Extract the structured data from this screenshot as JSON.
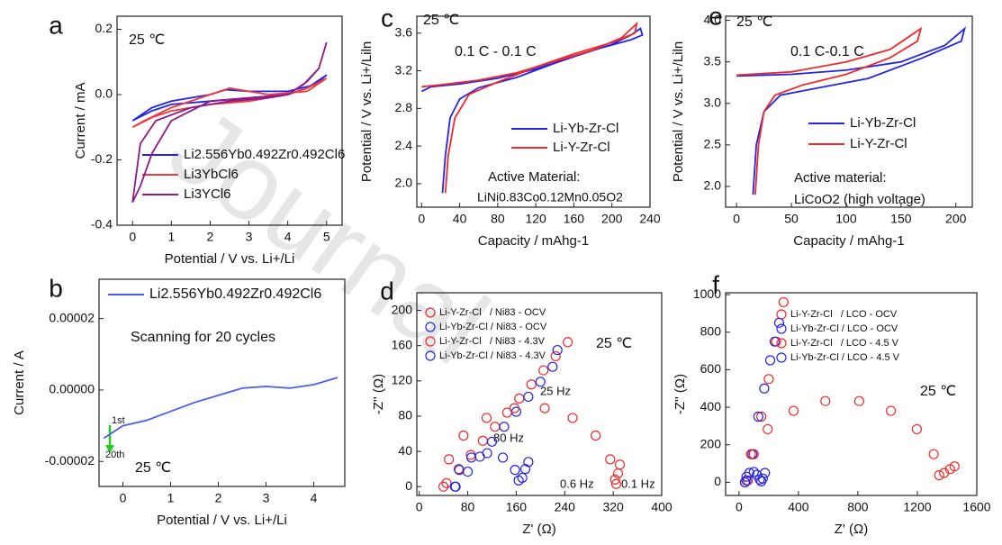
{
  "watermark": "Journal",
  "chart_data": [
    {
      "type": "line",
      "panel_label": "a",
      "xlabel": "Potential / V vs. Li+/Li",
      "ylabel": "Current / mA",
      "xlim": [
        -0.4,
        5.4
      ],
      "ylim": [
        -0.4,
        0.24
      ],
      "xticks": [
        0,
        1,
        2,
        3,
        4,
        5
      ],
      "yticks": [
        -0.4,
        -0.2,
        {
          "value": 0,
          "label": "0.0"
        },
        0.2
      ],
      "annotations": [
        "25 ℃"
      ],
      "series": [
        {
          "name": "Li2.556Yb0.492Zr0.492Cl6",
          "color": "#2424e8",
          "x": [
            0,
            0.5,
            1,
            2,
            3,
            4,
            4.5,
            5,
            4.7,
            4,
            3,
            2.4,
            2,
            1,
            0.5,
            0
          ],
          "values": [
            -0.08,
            -0.05,
            -0.03,
            -0.02,
            -0.01,
            0.0,
            0.02,
            0.06,
            0.03,
            0.01,
            0.01,
            0.015,
            0.0,
            -0.02,
            -0.04,
            -0.08
          ]
        },
        {
          "name": "Li3YbCl6",
          "color": "#ee3a3a",
          "x": [
            0,
            0.5,
            1,
            2,
            3,
            4,
            4.5,
            5,
            4.5,
            3.5,
            2.5,
            2,
            1,
            0.3,
            0
          ],
          "values": [
            -0.1,
            -0.07,
            -0.05,
            -0.03,
            -0.02,
            0.0,
            0.02,
            0.05,
            0.01,
            0.0,
            0.02,
            0.0,
            -0.04,
            -0.08,
            -0.1
          ]
        },
        {
          "name": "Li3YCl6",
          "color": "#8b1a8b",
          "x": [
            0,
            0.2,
            0.6,
            1.5,
            2.5,
            3.5,
            4,
            4.4,
            4.8,
            5,
            4.8,
            4.5,
            4,
            3,
            2,
            1,
            0.5,
            0.2,
            0
          ],
          "values": [
            -0.33,
            -0.15,
            -0.08,
            -0.04,
            -0.02,
            -0.01,
            0.0,
            0.03,
            0.08,
            0.16,
            0.08,
            0.04,
            0.0,
            -0.01,
            -0.02,
            -0.08,
            -0.18,
            -0.28,
            -0.33
          ]
        }
      ]
    },
    {
      "type": "line",
      "panel_label": "b",
      "xlabel": "Potential / V vs. Li+/Li",
      "ylabel": "Current / A",
      "xlim": [
        -0.5,
        4.65
      ],
      "ylim": [
        -2.7e-05,
        3.1e-05
      ],
      "xticks": [
        0,
        1,
        2,
        3,
        4
      ],
      "yticks": [
        {
          "value": -2e-05,
          "label": "-0.00002"
        },
        {
          "value": 0,
          "label": "0.00000"
        },
        {
          "value": 2e-05,
          "label": "0.00002"
        }
      ],
      "annotations": [
        "Scanning for 20 cycles",
        "1st",
        "20th",
        "25 ℃"
      ],
      "series": [
        {
          "name": "Li2.556Yb0.492Zr0.492Cl6",
          "color": "#4c5fe8",
          "x": [
            -0.4,
            0,
            0.5,
            1,
            1.5,
            2,
            2.5,
            3,
            3.5,
            4,
            4.5
          ],
          "values": [
            -1.35e-05,
            -1e-05,
            -8.5e-06,
            -6e-06,
            -3.5e-06,
            -1.5e-06,
            5e-07,
            1e-06,
            5e-07,
            1.5e-06,
            3.5e-06
          ]
        }
      ]
    },
    {
      "type": "line",
      "panel_label": "c",
      "xlabel": "Capacity / mAhg-1",
      "ylabel": "Potential / V vs. Li+/Liln",
      "xlim": [
        -5,
        240
      ],
      "ylim": [
        1.75,
        3.78
      ],
      "xticks": [
        0,
        40,
        80,
        120,
        160,
        200,
        240
      ],
      "yticks": [
        {
          "value": 2,
          "label": "2.0"
        },
        2.4,
        2.8,
        3.2,
        3.6
      ],
      "annotations": [
        "25 ℃",
        "0.1 C - 0.1 C",
        "Active Material:",
        "LiNi0.83Co0.12Mn0.05O2"
      ],
      "series": [
        {
          "name": "Li-Yb-Zr-Cl",
          "color": "#2424e8",
          "x": [
            0,
            10,
            40,
            80,
            120,
            160,
            200,
            220,
            230,
            232,
            220,
            180,
            140,
            100,
            60,
            40,
            30,
            25,
            22
          ],
          "values": [
            2.98,
            3.03,
            3.06,
            3.12,
            3.22,
            3.35,
            3.48,
            3.58,
            3.65,
            3.58,
            3.53,
            3.42,
            3.28,
            3.13,
            3.02,
            2.9,
            2.7,
            2.3,
            1.9
          ]
        },
        {
          "name": "Li-Y-Zr-Cl",
          "color": "#ee2a2a",
          "x": [
            0,
            20,
            60,
            100,
            140,
            180,
            210,
            226,
            224,
            200,
            160,
            120,
            80,
            50,
            35,
            28,
            25
          ],
          "values": [
            3.03,
            3.05,
            3.1,
            3.18,
            3.3,
            3.42,
            3.55,
            3.7,
            3.6,
            3.5,
            3.38,
            3.24,
            3.08,
            2.95,
            2.7,
            2.3,
            1.9
          ]
        }
      ]
    },
    {
      "type": "scatter",
      "panel_label": "d",
      "xlabel": "Z' (Ω)",
      "ylabel": "-Z'' (Ω)",
      "xlim": [
        -4,
        400
      ],
      "ylim": [
        -10,
        220
      ],
      "xticks": [
        0,
        80,
        160,
        240,
        320,
        400
      ],
      "yticks": [
        0,
        40,
        80,
        120,
        160,
        200
      ],
      "annotations": [
        "25 Hz",
        "80 Hz",
        "0.6 Hz",
        "0.1 Hz",
        "25 ℃"
      ],
      "series": [
        {
          "name": "Li-Y-Zr-Cl   / Ni83 - OCV",
          "color": "#ee2a2a",
          "x": [
            45,
            65,
            85,
            105,
            125,
            145,
            165,
            185,
            205,
            225,
            245
          ],
          "values": [
            4,
            20,
            36,
            52,
            68,
            84,
            100,
            116,
            132,
            148,
            164
          ]
        },
        {
          "name": "Li-Yb-Zr-Cl / Ni83 - OCV",
          "color": "#2424e8",
          "x": [
            60,
            80,
            100,
            120,
            140,
            160,
            180,
            200,
            220,
            228
          ],
          "values": [
            0,
            17,
            34,
            51,
            68,
            85,
            102,
            119,
            136,
            155
          ]
        },
        {
          "name": "Li-Y-Zr-Cl   / Ni83 - 4.3V",
          "color": "#ee2a2a",
          "x": [
            40,
            49,
            73,
            111,
            157,
            207,
            253,
            291,
            315,
            323,
            325,
            328,
            331
          ],
          "values": [
            0,
            31,
            58,
            78,
            89,
            89,
            78,
            58,
            31,
            8,
            3,
            15,
            25
          ]
        },
        {
          "name": "Li-Yb-Zr-Cl / Ni83 - 4.3V",
          "color": "#2424e8",
          "x": [
            59,
            66,
            86,
            112,
            138,
            158,
            164,
            170,
            175,
            180
          ],
          "values": [
            0,
            19,
            33,
            38,
            33,
            19,
            7,
            10,
            20,
            28
          ]
        }
      ]
    },
    {
      "type": "line",
      "panel_label": "e",
      "xlabel": "Capacity / mAhg-1",
      "ylabel": "Potential / V vs. Li+/Liln",
      "xlim": [
        -10,
        215
      ],
      "ylim": [
        1.75,
        4.05
      ],
      "xticks": [
        0,
        50,
        100,
        150,
        200
      ],
      "yticks": [
        {
          "value": 2,
          "label": "2.0"
        },
        2.5,
        {
          "value": 3,
          "label": "3.0"
        },
        3.5,
        {
          "value": 4,
          "label": "4.0"
        }
      ],
      "annotations": [
        "25 ℃",
        "0.1 C-0.1 C",
        "Active material:",
        "LiCoO2 (high voltage)"
      ],
      "series": [
        {
          "name": "Li-Yb-Zr-Cl",
          "color": "#2424e8",
          "x": [
            0,
            50,
            100,
            150,
            190,
            208,
            205,
            170,
            120,
            80,
            40,
            25,
            18,
            15
          ],
          "values": [
            3.33,
            3.35,
            3.4,
            3.5,
            3.7,
            3.9,
            3.75,
            3.55,
            3.3,
            3.2,
            3.1,
            2.9,
            2.5,
            1.9
          ]
        },
        {
          "name": "Li-Y-Zr-Cl",
          "color": "#ee2a2a",
          "x": [
            0,
            50,
            100,
            140,
            168,
            165,
            140,
            100,
            60,
            35,
            25,
            20,
            17
          ],
          "values": [
            3.34,
            3.38,
            3.5,
            3.65,
            3.9,
            3.75,
            3.55,
            3.35,
            3.22,
            3.1,
            2.9,
            2.5,
            1.9
          ]
        }
      ]
    },
    {
      "type": "scatter",
      "panel_label": "f",
      "xlabel": "Z' (Ω)",
      "ylabel": "-Z'' (Ω)",
      "xlim": [
        -90,
        1600
      ],
      "ylim": [
        -70,
        1010
      ],
      "xticks": [
        0,
        400,
        800,
        1200,
        1600
      ],
      "yticks": [
        0,
        200,
        400,
        600,
        800,
        1000
      ],
      "annotations": [
        "25 ℃"
      ],
      "series": [
        {
          "name": "Li-Y-Zr-Cl   / LCO - OCV",
          "color": "#ee2a2a",
          "x": [
            60,
            100,
            150,
            200,
            250,
            300
          ],
          "values": [
            10,
            150,
            350,
            550,
            750,
            960
          ]
        },
        {
          "name": "Li-Yb-Zr-Cl / LCO - OCV",
          "color": "#2424e8",
          "x": [
            50,
            90,
            130,
            170,
            210,
            240,
            270
          ],
          "values": [
            10,
            150,
            350,
            500,
            650,
            750,
            850
          ]
        },
        {
          "name": "Li-Y-Zr-Cl   / LCO - 4.5 V",
          "color": "#ee2a2a",
          "x": [
            40,
            80,
            193,
            367,
            581,
            809,
            1022,
            1197,
            1310,
            1347,
            1380,
            1420,
            1450
          ],
          "values": [
            0,
            150,
            283,
            381,
            433,
            433,
            381,
            283,
            150,
            38,
            50,
            70,
            85
          ]
        },
        {
          "name": "Li-Yb-Zr-Cl / LCO - 4.5 V",
          "color": "#2424e8",
          "x": [
            40,
            50,
            70,
            100,
            120,
            140,
            150,
            160,
            175
          ],
          "values": [
            0,
            30,
            50,
            55,
            40,
            15,
            5,
            20,
            50
          ]
        }
      ]
    }
  ]
}
